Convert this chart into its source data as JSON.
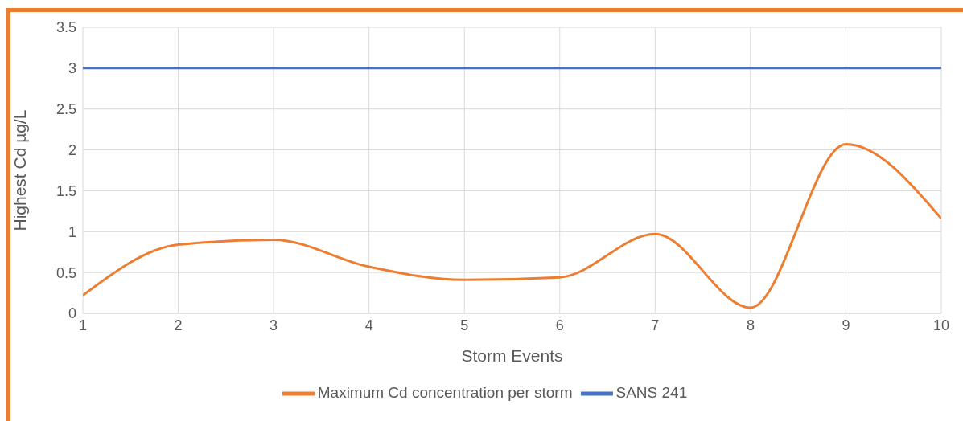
{
  "chart_data": {
    "type": "line",
    "xlabel": "Storm Events",
    "ylabel": "Highest Cd µg/L",
    "x": [
      1,
      2,
      3,
      4,
      5,
      6,
      7,
      8,
      9,
      10
    ],
    "series": [
      {
        "name": "SANS 241",
        "color": "#4472c4",
        "values": [
          3,
          3,
          3,
          3,
          3,
          3,
          3,
          3,
          3,
          3
        ]
      },
      {
        "name": "Maximum Cd concentration per storm",
        "color": "#ed7d31",
        "values": [
          0.22,
          0.84,
          0.9,
          0.57,
          0.41,
          0.44,
          0.97,
          0.07,
          2.07,
          1.16
        ]
      }
    ],
    "xlim": [
      1,
      10
    ],
    "xticks": [
      1,
      2,
      3,
      4,
      5,
      6,
      7,
      8,
      9,
      10
    ],
    "ylim": [
      0,
      3.5
    ],
    "yticks": [
      0,
      0.5,
      1,
      1.5,
      2,
      2.5,
      3,
      3.5
    ],
    "grid": true,
    "legend": "bottom",
    "marker": "none",
    "line_style": "solid"
  }
}
